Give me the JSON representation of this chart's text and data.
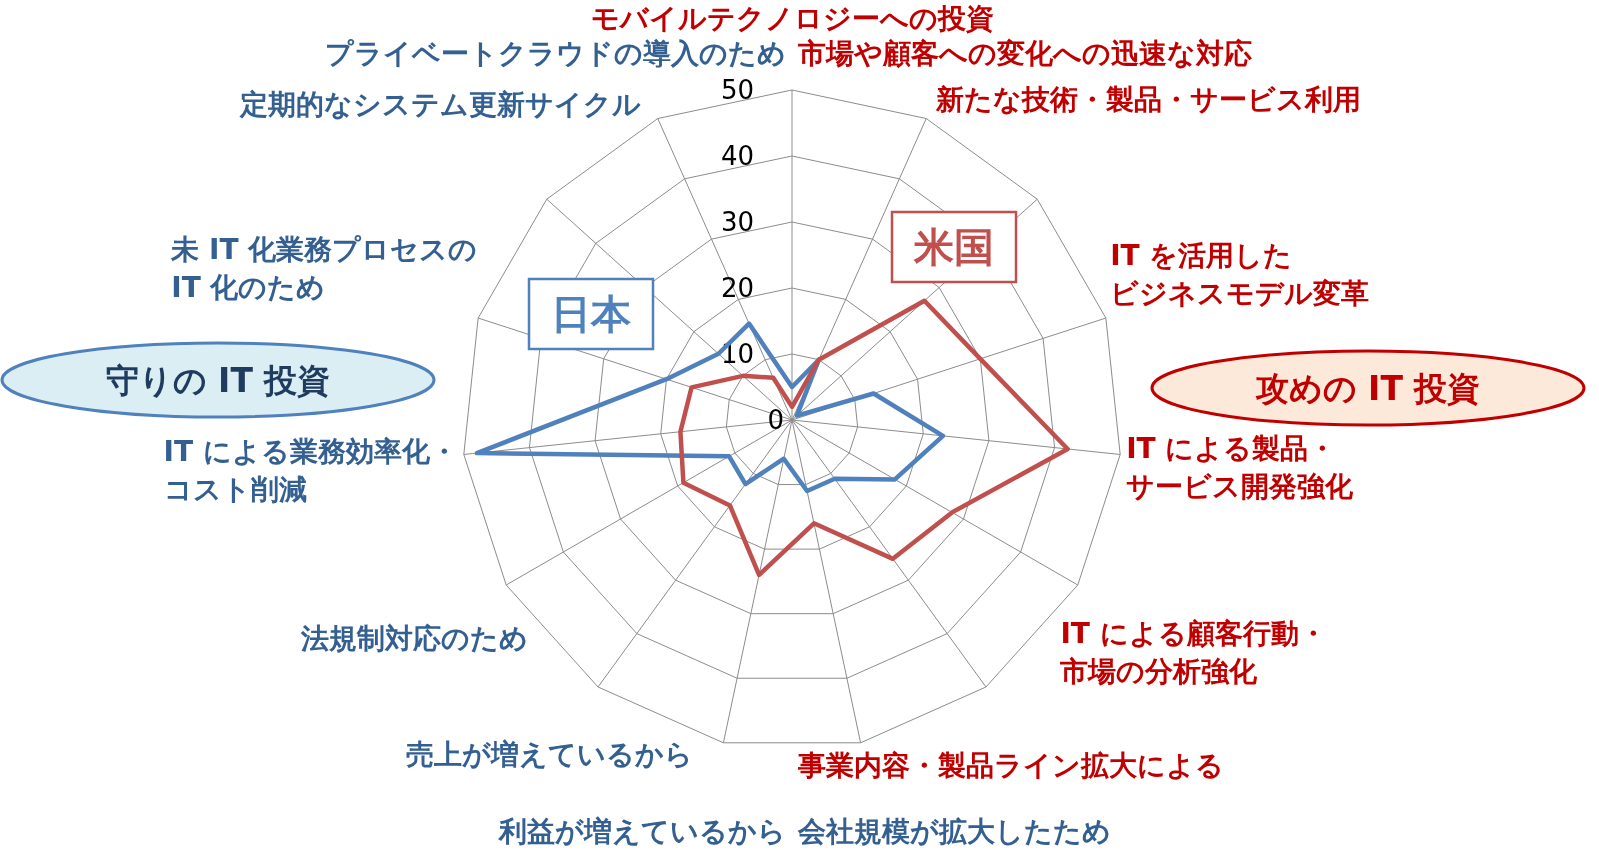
{
  "chart_data": {
    "type": "radar",
    "categories": [
      "モバイルテクノロジーへの投資",
      "市場や顧客への変化への迅速な対応",
      "新たな技術・製品・サービス利用",
      "IT を活用したビジネスモデル変革",
      "IT による製品・サービス開発強化",
      "IT による顧客行動・市場の分析強化",
      "事業内容・製品ライン拡大による",
      "会社規模が拡大したため",
      "利益が増えているから",
      "売上が増えているから",
      "法規制対応のため",
      "IT による業務効率化・コスト削減",
      "未 IT 化業務プロセスのIT 化のため",
      "定期的なシステム更新サイクル",
      "プライベートクラウドの導入のため"
    ],
    "colors": [
      "#c00000",
      "#c00000",
      "#c00000",
      "#c00000",
      "#c00000",
      "#c00000",
      "#c00000",
      "#335f91",
      "#335f91",
      "#335f91",
      "#335f91",
      "#335f91",
      "#335f91",
      "#335f91",
      "#335f91"
    ],
    "series": [
      {
        "name": "日本",
        "color": "#4f81bd",
        "values": [
          5,
          10,
          1,
          13,
          23,
          18,
          11,
          11,
          6,
          12,
          11,
          48,
          20,
          15,
          16
        ]
      },
      {
        "name": "米国",
        "color": "#c0504d",
        "values": [
          2,
          10,
          27,
          30,
          42,
          28,
          26,
          16,
          24,
          16,
          19,
          17,
          16,
          10,
          7
        ]
      }
    ],
    "ylim": [
      0,
      50
    ],
    "yticks": [
      0,
      10,
      20,
      30,
      40,
      50
    ],
    "grid": true,
    "annotations": [
      "守りの IT 投資",
      "攻めの IT 投資"
    ]
  }
}
